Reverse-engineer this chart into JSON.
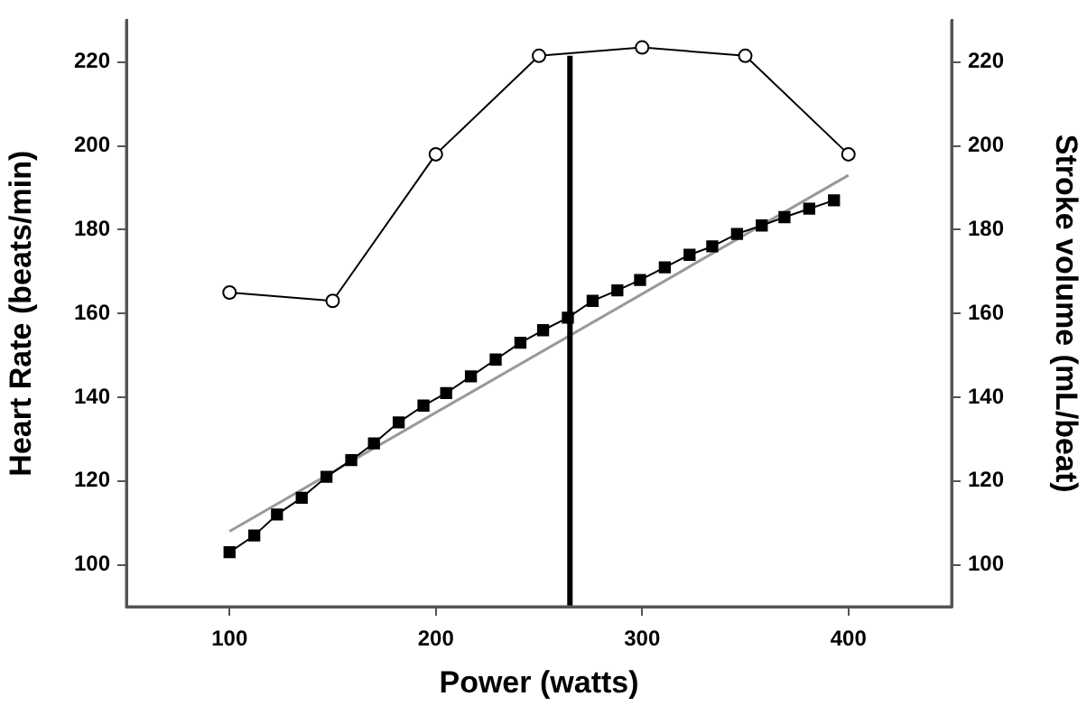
{
  "chart_data": {
    "type": "line",
    "xlabel": "Power (watts)",
    "ylabel": "Heart Rate (beats/min)",
    "y2label": "Stroke volume (mL/beat)",
    "xlim": [
      50,
      450
    ],
    "xticks": [
      100,
      200,
      300,
      400
    ],
    "ylim": [
      90,
      230
    ],
    "yticks": [
      100,
      120,
      140,
      160,
      180,
      200,
      220
    ],
    "y2lim": [
      90,
      230
    ],
    "y2ticks": [
      100,
      120,
      140,
      160,
      180,
      200,
      220
    ],
    "grid": false,
    "legend": false,
    "series": [
      {
        "color": "#999999",
        "marker": "none",
        "x": [
          100,
          400
        ],
        "values": [
          108,
          193
        ]
      },
      {
        "color": "#000000",
        "marker": "square",
        "x": [
          100,
          112,
          123,
          135,
          147,
          159,
          170,
          182,
          194,
          205,
          217,
          229,
          241,
          252,
          264,
          276,
          288,
          299,
          311,
          323,
          334,
          346,
          358,
          369,
          381,
          393
        ],
        "values": [
          103,
          107,
          112,
          116,
          121,
          125,
          129,
          134,
          138,
          141,
          145,
          149,
          153,
          156,
          159,
          163,
          165.5,
          168,
          171,
          174,
          176,
          179,
          181,
          183,
          185,
          187
        ]
      },
      {
        "color": "#000000",
        "marker": "circle",
        "axis": "y2",
        "x": [
          100,
          150,
          200,
          250,
          300,
          350,
          400
        ],
        "values": [
          165,
          163,
          198,
          221.5,
          223.5,
          221.5,
          198
        ]
      },
      {
        "color": "#000000",
        "marker": "none",
        "x": [
          265,
          265
        ],
        "values": [
          90,
          221.5
        ]
      }
    ]
  }
}
